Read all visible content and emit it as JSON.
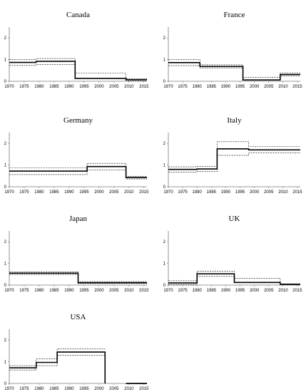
{
  "chart_data": [
    {
      "type": "line",
      "title": "Canada",
      "xlim": [
        1970,
        2016
      ],
      "ylim": [
        0,
        2.5
      ],
      "xticks": [
        1970,
        1975,
        1980,
        1985,
        1990,
        1995,
        2000,
        2005,
        2010,
        2015
      ],
      "yticks": [
        0,
        1,
        2
      ],
      "series": [
        {
          "role": "estimate",
          "style": "solid",
          "steps": [
            [
              1970,
              1979,
              0.87
            ],
            [
              1979,
              1992,
              0.92
            ],
            [
              1992,
              2009,
              0.13
            ],
            [
              2009,
              2016,
              0.07
            ]
          ]
        },
        {
          "role": "upper",
          "style": "dashed",
          "steps": [
            [
              1970,
              1979,
              1.0
            ],
            [
              1979,
              1992,
              1.05
            ],
            [
              1992,
              2009,
              0.37
            ],
            [
              2009,
              2016,
              0.12
            ]
          ]
        },
        {
          "role": "lower",
          "style": "dashed",
          "steps": [
            [
              1970,
              1979,
              0.73
            ],
            [
              1979,
              1992,
              0.78
            ],
            [
              1992,
              2009,
              0.13
            ],
            [
              2009,
              2016,
              0.03
            ]
          ]
        }
      ]
    },
    {
      "type": "line",
      "title": "France",
      "xlim": [
        1970,
        2016
      ],
      "ylim": [
        0,
        2.5
      ],
      "xticks": [
        1970,
        1975,
        1980,
        1985,
        1990,
        1995,
        2000,
        2005,
        2010,
        2015
      ],
      "yticks": [
        0,
        1,
        2
      ],
      "series": [
        {
          "role": "estimate",
          "style": "solid",
          "steps": [
            [
              1970,
              1981,
              0.86
            ],
            [
              1981,
              1996,
              0.68
            ],
            [
              1996,
              2009,
              0.06
            ],
            [
              2009,
              2016,
              0.31
            ]
          ]
        },
        {
          "role": "upper",
          "style": "dashed",
          "steps": [
            [
              1970,
              1981,
              1.0
            ],
            [
              1981,
              1996,
              0.76
            ],
            [
              1996,
              2009,
              0.18
            ],
            [
              2009,
              2016,
              0.38
            ]
          ]
        },
        {
          "role": "lower",
          "style": "dashed",
          "steps": [
            [
              1970,
              1981,
              0.72
            ],
            [
              1981,
              1996,
              0.6
            ],
            [
              1996,
              2009,
              0.06
            ],
            [
              2009,
              2016,
              0.24
            ]
          ]
        }
      ]
    },
    {
      "type": "line",
      "title": "Germany",
      "xlim": [
        1970,
        2016
      ],
      "ylim": [
        0,
        2.5
      ],
      "xticks": [
        1970,
        1975,
        1980,
        1985,
        1990,
        1995,
        2000,
        2005,
        2010,
        2015
      ],
      "yticks": [
        0,
        1,
        2
      ],
      "series": [
        {
          "role": "estimate",
          "style": "solid",
          "steps": [
            [
              1970,
              1996,
              0.72
            ],
            [
              1996,
              2009,
              0.93
            ],
            [
              2009,
              2016,
              0.42
            ]
          ]
        },
        {
          "role": "upper",
          "style": "dashed",
          "steps": [
            [
              1970,
              1996,
              0.88
            ],
            [
              1996,
              2009,
              1.08
            ],
            [
              2009,
              2016,
              0.48
            ]
          ]
        },
        {
          "role": "lower",
          "style": "dashed",
          "steps": [
            [
              1970,
              1996,
              0.56
            ],
            [
              1996,
              2009,
              0.78
            ],
            [
              2009,
              2016,
              0.36
            ]
          ]
        }
      ]
    },
    {
      "type": "line",
      "title": "Italy",
      "xlim": [
        1970,
        2016
      ],
      "ylim": [
        0,
        2.5
      ],
      "xticks": [
        1970,
        1975,
        1980,
        1985,
        1990,
        1995,
        2000,
        2005,
        2010,
        2015
      ],
      "yticks": [
        0,
        1,
        2
      ],
      "series": [
        {
          "role": "estimate",
          "style": "solid",
          "steps": [
            [
              1970,
              1980,
              0.8
            ],
            [
              1980,
              1987,
              0.82
            ],
            [
              1987,
              1998,
              1.75
            ],
            [
              1998,
              2016,
              1.7
            ]
          ]
        },
        {
          "role": "upper",
          "style": "dashed",
          "steps": [
            [
              1970,
              1980,
              0.92
            ],
            [
              1980,
              1987,
              0.94
            ],
            [
              1987,
              1998,
              2.08
            ],
            [
              1998,
              2016,
              1.85
            ]
          ]
        },
        {
          "role": "lower",
          "style": "dashed",
          "steps": [
            [
              1970,
              1980,
              0.68
            ],
            [
              1980,
              1987,
              0.7
            ],
            [
              1987,
              1998,
              1.45
            ],
            [
              1998,
              2016,
              1.57
            ]
          ]
        }
      ]
    },
    {
      "type": "line",
      "title": "Japan",
      "xlim": [
        1970,
        2016
      ],
      "ylim": [
        0,
        2.5
      ],
      "xticks": [
        1970,
        1975,
        1980,
        1985,
        1990,
        1995,
        2000,
        2005,
        2010,
        2015
      ],
      "yticks": [
        0,
        1,
        2
      ],
      "series": [
        {
          "role": "estimate",
          "style": "solid",
          "steps": [
            [
              1970,
              1993,
              0.55
            ],
            [
              1993,
              2016,
              0.11
            ]
          ]
        },
        {
          "role": "upper",
          "style": "dashed",
          "steps": [
            [
              1970,
              1993,
              0.61
            ],
            [
              1993,
              2016,
              0.16
            ]
          ]
        },
        {
          "role": "lower",
          "style": "dashed",
          "steps": [
            [
              1970,
              1993,
              0.49
            ],
            [
              1993,
              2016,
              0.07
            ]
          ]
        }
      ]
    },
    {
      "type": "line",
      "title": "UK",
      "xlim": [
        1970,
        2016
      ],
      "ylim": [
        0,
        2.5
      ],
      "xticks": [
        1970,
        1975,
        1980,
        1985,
        1990,
        1995,
        2000,
        2005,
        2010,
        2015
      ],
      "yticks": [
        0,
        1,
        2
      ],
      "series": [
        {
          "role": "estimate",
          "style": "solid",
          "steps": [
            [
              1970,
              1980,
              0.1
            ],
            [
              1980,
              1993,
              0.52
            ],
            [
              1993,
              2009,
              0.12
            ],
            [
              2009,
              2016,
              0.04
            ]
          ]
        },
        {
          "role": "upper",
          "style": "dashed",
          "steps": [
            [
              1970,
              1980,
              0.2
            ],
            [
              1980,
              1993,
              0.64
            ],
            [
              1993,
              2009,
              0.32
            ],
            [
              2009,
              2016,
              0.06
            ]
          ]
        },
        {
          "role": "lower",
          "style": "dashed",
          "steps": [
            [
              1970,
              1980,
              0.03
            ],
            [
              1980,
              1993,
              0.4
            ],
            [
              1993,
              2009,
              0.12
            ],
            [
              2009,
              2016,
              0.02
            ]
          ]
        }
      ]
    },
    {
      "type": "line",
      "title": "USA",
      "xlim": [
        1970,
        2016
      ],
      "ylim": [
        0,
        2.5
      ],
      "xticks": [
        1970,
        1975,
        1980,
        1985,
        1990,
        1995,
        2000,
        2005,
        2010,
        2015
      ],
      "yticks": [
        0,
        1,
        2
      ],
      "series": [
        {
          "role": "estimate",
          "style": "solid",
          "steps": [
            [
              1970,
              1979,
              0.72
            ],
            [
              1979,
              1986,
              0.97
            ],
            [
              1986,
              2002,
              1.45
            ],
            [
              2002,
              2002,
              0.0
            ],
            [
              2009,
              2016,
              0.0
            ]
          ]
        },
        {
          "role": "upper",
          "style": "dashed",
          "steps": [
            [
              1970,
              1979,
              0.82
            ],
            [
              1979,
              1986,
              1.13
            ],
            [
              1986,
              2002,
              1.6
            ],
            [
              2009,
              2016,
              0.02
            ]
          ]
        },
        {
          "role": "lower",
          "style": "dashed",
          "steps": [
            [
              1970,
              1979,
              0.62
            ],
            [
              1979,
              1986,
              0.82
            ],
            [
              1986,
              2002,
              1.3
            ],
            [
              2009,
              2016,
              -0.02
            ]
          ]
        }
      ]
    }
  ]
}
